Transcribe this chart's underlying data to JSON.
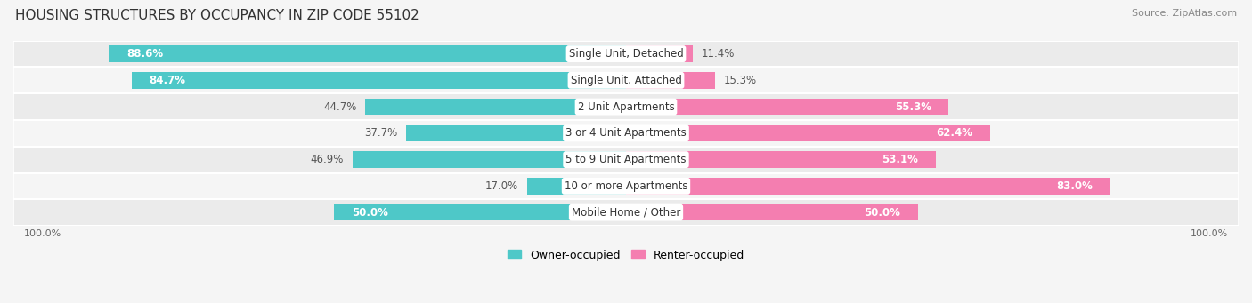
{
  "title": "HOUSING STRUCTURES BY OCCUPANCY IN ZIP CODE 55102",
  "source": "Source: ZipAtlas.com",
  "categories": [
    "Single Unit, Detached",
    "Single Unit, Attached",
    "2 Unit Apartments",
    "3 or 4 Unit Apartments",
    "5 to 9 Unit Apartments",
    "10 or more Apartments",
    "Mobile Home / Other"
  ],
  "owner_pct": [
    88.6,
    84.7,
    44.7,
    37.7,
    46.9,
    17.0,
    50.0
  ],
  "renter_pct": [
    11.4,
    15.3,
    55.3,
    62.4,
    53.1,
    83.0,
    50.0
  ],
  "owner_color": "#4EC8C8",
  "renter_color": "#F47EB0",
  "row_colors": [
    "#EBEBEB",
    "#F5F5F5",
    "#EBEBEB",
    "#F5F5F5",
    "#EBEBEB",
    "#F5F5F5",
    "#EBEBEB"
  ],
  "background_color": "#F5F5F5",
  "title_fontsize": 11,
  "source_fontsize": 8,
  "label_fontsize": 8.5,
  "category_fontsize": 8.5,
  "legend_fontsize": 9,
  "axis_label_fontsize": 8
}
